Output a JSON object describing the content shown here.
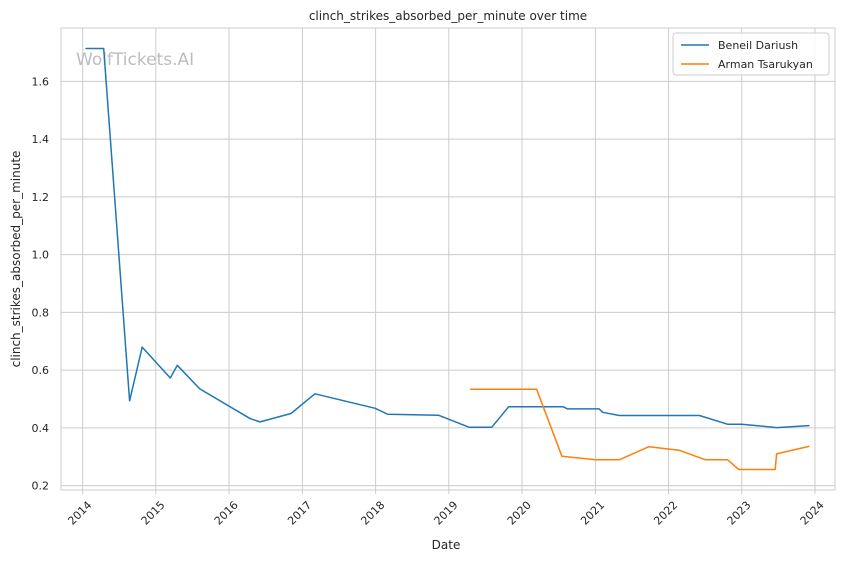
{
  "chart_data": {
    "type": "line",
    "title": "clinch_strikes_absorbed_per_minute over time",
    "xlabel": "Date",
    "ylabel": "clinch_strikes_absorbed_per_minute",
    "watermark": "WolfTickets.AI",
    "x_ticks": [
      "2014",
      "2015",
      "2016",
      "2017",
      "2018",
      "2019",
      "2020",
      "2021",
      "2022",
      "2023",
      "2024"
    ],
    "y_ticks": [
      "0.2",
      "0.4",
      "0.6",
      "0.8",
      "1.0",
      "1.2",
      "1.4",
      "1.6"
    ],
    "xlim": [
      "2013-09-15",
      "2024-04-10"
    ],
    "ylim": [
      0.185,
      1.785
    ],
    "grid": true,
    "legend_position": "top-right",
    "series": [
      {
        "name": "Beneil Dariush",
        "color": "#1f77b4",
        "points": [
          [
            "2014-01-18",
            1.714
          ],
          [
            "2014-04-16",
            1.714
          ],
          [
            "2014-08-23",
            0.494
          ],
          [
            "2014-10-25",
            0.68
          ],
          [
            "2015-03-14",
            0.573
          ],
          [
            "2015-04-18",
            0.617
          ],
          [
            "2015-08-08",
            0.535
          ],
          [
            "2016-04-16",
            0.432
          ],
          [
            "2016-06-04",
            0.421
          ],
          [
            "2016-11-05",
            0.45
          ],
          [
            "2017-03-04",
            0.518
          ],
          [
            "2017-12-30",
            0.468
          ],
          [
            "2018-03-03",
            0.447
          ],
          [
            "2018-11-10",
            0.444
          ],
          [
            "2019-04-13",
            0.402
          ],
          [
            "2019-08-03",
            0.402
          ],
          [
            "2019-10-26",
            0.473
          ],
          [
            "2020-07-25",
            0.473
          ],
          [
            "2020-08-15",
            0.466
          ],
          [
            "2021-01-20",
            0.466
          ],
          [
            "2021-02-06",
            0.454
          ],
          [
            "2021-05-01",
            0.443
          ],
          [
            "2022-06-04",
            0.443
          ],
          [
            "2022-10-22",
            0.413
          ],
          [
            "2022-12-31",
            0.413
          ],
          [
            "2023-06-24",
            0.401
          ],
          [
            "2023-12-02",
            0.408
          ]
        ]
      },
      {
        "name": "Arman Tsarukyan",
        "color": "#ff7f0e",
        "points": [
          [
            "2019-04-20",
            0.534
          ],
          [
            "2020-03-14",
            0.534
          ],
          [
            "2020-07-18",
            0.302
          ],
          [
            "2021-01-01",
            0.29
          ],
          [
            "2021-05-01",
            0.29
          ],
          [
            "2021-09-25",
            0.335
          ],
          [
            "2022-02-26",
            0.322
          ],
          [
            "2022-07-02",
            0.29
          ],
          [
            "2022-10-22",
            0.29
          ],
          [
            "2022-12-17",
            0.256
          ],
          [
            "2023-06-17",
            0.256
          ],
          [
            "2023-06-24",
            0.31
          ],
          [
            "2023-12-02",
            0.336
          ]
        ]
      }
    ]
  }
}
